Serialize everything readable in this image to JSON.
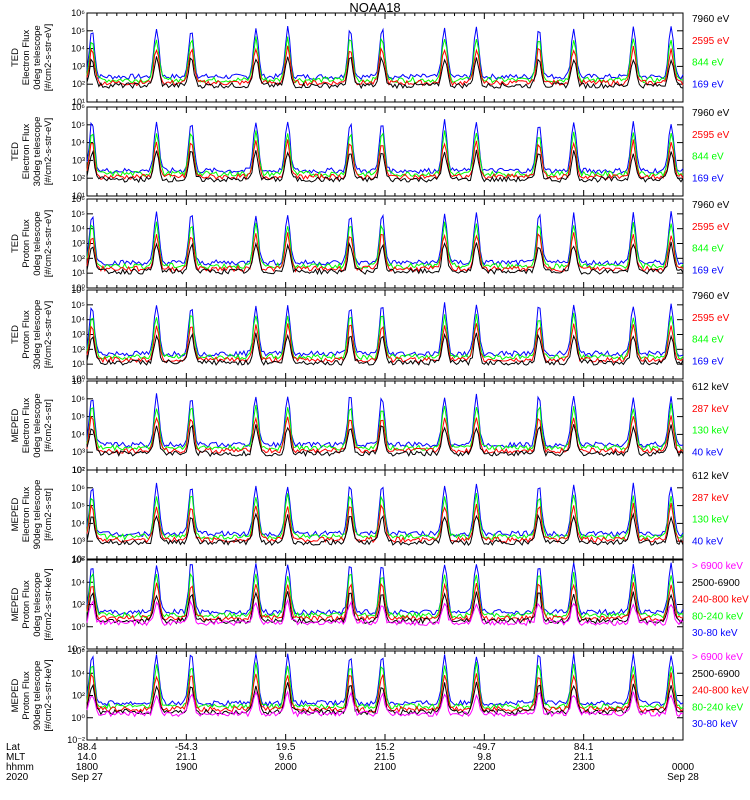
{
  "title": "NOAA18",
  "chart_data": [
    {
      "type": "line",
      "ylabel": [
        "TED",
        "Electron Flux",
        "0deg telescope",
        "[#/cm2-s-str-eV]"
      ],
      "ylim": [
        10,
        1000000
      ],
      "yticks": [
        "10¹",
        "10²",
        "10³",
        "10⁴",
        "10⁵",
        "10⁶"
      ],
      "legend": [
        {
          "name": "7960 eV",
          "color": "#000000"
        },
        {
          "name": "2595 eV",
          "color": "#ff0000"
        },
        {
          "name": "844 eV",
          "color": "#00ff00"
        },
        {
          "name": "169 eV",
          "color": "#0000ff"
        }
      ]
    },
    {
      "type": "line",
      "ylabel": [
        "TED",
        "Electron Flux",
        "30deg telescope",
        "[#/cm2-s-str-eV]"
      ],
      "ylim": [
        10,
        1000000
      ],
      "yticks": [
        "10¹",
        "10²",
        "10³",
        "10⁴",
        "10⁵",
        "10⁶"
      ],
      "legend": [
        {
          "name": "7960 eV",
          "color": "#000000"
        },
        {
          "name": "2595 eV",
          "color": "#ff0000"
        },
        {
          "name": "844 eV",
          "color": "#00ff00"
        },
        {
          "name": "169 eV",
          "color": "#0000ff"
        }
      ]
    },
    {
      "type": "line",
      "ylabel": [
        "TED",
        "Proton Flux",
        "0deg telescope",
        "[#/cm2-s-str-eV]"
      ],
      "ylim": [
        1,
        1000000
      ],
      "yticks": [
        "10⁰",
        "10¹",
        "10²",
        "10³",
        "10⁴",
        "10⁵",
        "10⁶"
      ],
      "legend": [
        {
          "name": "7960 eV",
          "color": "#000000"
        },
        {
          "name": "2595 eV",
          "color": "#ff0000"
        },
        {
          "name": "844 eV",
          "color": "#00ff00"
        },
        {
          "name": "169 eV",
          "color": "#0000ff"
        }
      ]
    },
    {
      "type": "line",
      "ylabel": [
        "TED",
        "Proton Flux",
        "30deg telescope",
        "[#/cm2-s-str-eV]"
      ],
      "ylim": [
        1,
        1000000
      ],
      "yticks": [
        "10⁰",
        "10¹",
        "10²",
        "10³",
        "10⁴",
        "10⁵",
        "10⁶"
      ],
      "legend": [
        {
          "name": "7960 eV",
          "color": "#000000"
        },
        {
          "name": "2595 eV",
          "color": "#ff0000"
        },
        {
          "name": "844 eV",
          "color": "#00ff00"
        },
        {
          "name": "169 eV",
          "color": "#0000ff"
        }
      ]
    },
    {
      "type": "line",
      "ylabel": [
        "MEPED",
        "Electron Flux",
        "0deg telescope",
        "[#/cm2-s-str]"
      ],
      "ylim": [
        100,
        10000000
      ],
      "yticks": [
        "10²",
        "10³",
        "10⁴",
        "10⁵",
        "10⁶",
        "10⁷"
      ],
      "legend": [
        {
          "name": "612 keV",
          "color": "#000000"
        },
        {
          "name": "287 keV",
          "color": "#ff0000"
        },
        {
          "name": "130 keV",
          "color": "#00ff00"
        },
        {
          "name": "40 keV",
          "color": "#0000ff"
        }
      ]
    },
    {
      "type": "line",
      "ylabel": [
        "MEPED",
        "Electron Flux",
        "90deg telescope",
        "[#/cm2-s-str]"
      ],
      "ylim": [
        100,
        10000000
      ],
      "yticks": [
        "10²",
        "10³",
        "10⁴",
        "10⁵",
        "10⁶",
        "10⁷"
      ],
      "legend": [
        {
          "name": "612 keV",
          "color": "#000000"
        },
        {
          "name": "287 keV",
          "color": "#ff0000"
        },
        {
          "name": "130 keV",
          "color": "#00ff00"
        },
        {
          "name": "40 keV",
          "color": "#0000ff"
        }
      ]
    },
    {
      "type": "line",
      "ylabel": [
        "MEPED",
        "Proton Flux",
        "0deg telescope",
        "[#/cm2-s-str-keV]"
      ],
      "ylim": [
        0.01,
        1000000
      ],
      "yticks": [
        "10⁻²",
        "10⁰",
        "10²",
        "10⁴",
        "10⁶"
      ],
      "legend": [
        {
          "name": "> 6900 keV",
          "color": "#ff00ff"
        },
        {
          "name": "2500-6900",
          "color": "#000000"
        },
        {
          "name": "240-800 keV",
          "color": "#ff0000"
        },
        {
          "name": "80-240 keV",
          "color": "#00ff00"
        },
        {
          "name": "30-80 keV",
          "color": "#0000ff"
        }
      ]
    },
    {
      "type": "line",
      "ylabel": [
        "MEPED",
        "Proton Flux",
        "90deg telescope",
        "[#/cm2-s-str-keV]"
      ],
      "ylim": [
        0.01,
        1000000
      ],
      "yticks": [
        "10⁻²",
        "10⁰",
        "10²",
        "10⁴",
        "10⁶"
      ],
      "legend": [
        {
          "name": "> 6900 keV",
          "color": "#ff00ff"
        },
        {
          "name": "2500-6900",
          "color": "#000000"
        },
        {
          "name": "240-800 keV",
          "color": "#ff0000"
        },
        {
          "name": "80-240 keV",
          "color": "#00ff00"
        },
        {
          "name": "30-80 keV",
          "color": "#0000ff"
        }
      ]
    }
  ],
  "x_axis": {
    "row_labels": [
      "Lat",
      "MLT",
      "hhmm",
      "2020"
    ],
    "ticks": [
      {
        "lat": "88.4",
        "mlt": "14.0",
        "hhmm": "1800",
        "date": "Sep 27"
      },
      {
        "lat": "-54.3",
        "mlt": "21.1",
        "hhmm": "1900",
        "date": ""
      },
      {
        "lat": "19.5",
        "mlt": "9.6",
        "hhmm": "2000",
        "date": ""
      },
      {
        "lat": "15.2",
        "mlt": "21.5",
        "hhmm": "2100",
        "date": ""
      },
      {
        "lat": "-49.7",
        "mlt": "9.8",
        "hhmm": "2200",
        "date": ""
      },
      {
        "lat": "84.1",
        "mlt": "21.1",
        "hhmm": "2300",
        "date": ""
      },
      {
        "lat": "",
        "mlt": "",
        "hhmm": "0000",
        "date": "Sep 28"
      }
    ],
    "xlim_hours": [
      18,
      24
    ]
  }
}
